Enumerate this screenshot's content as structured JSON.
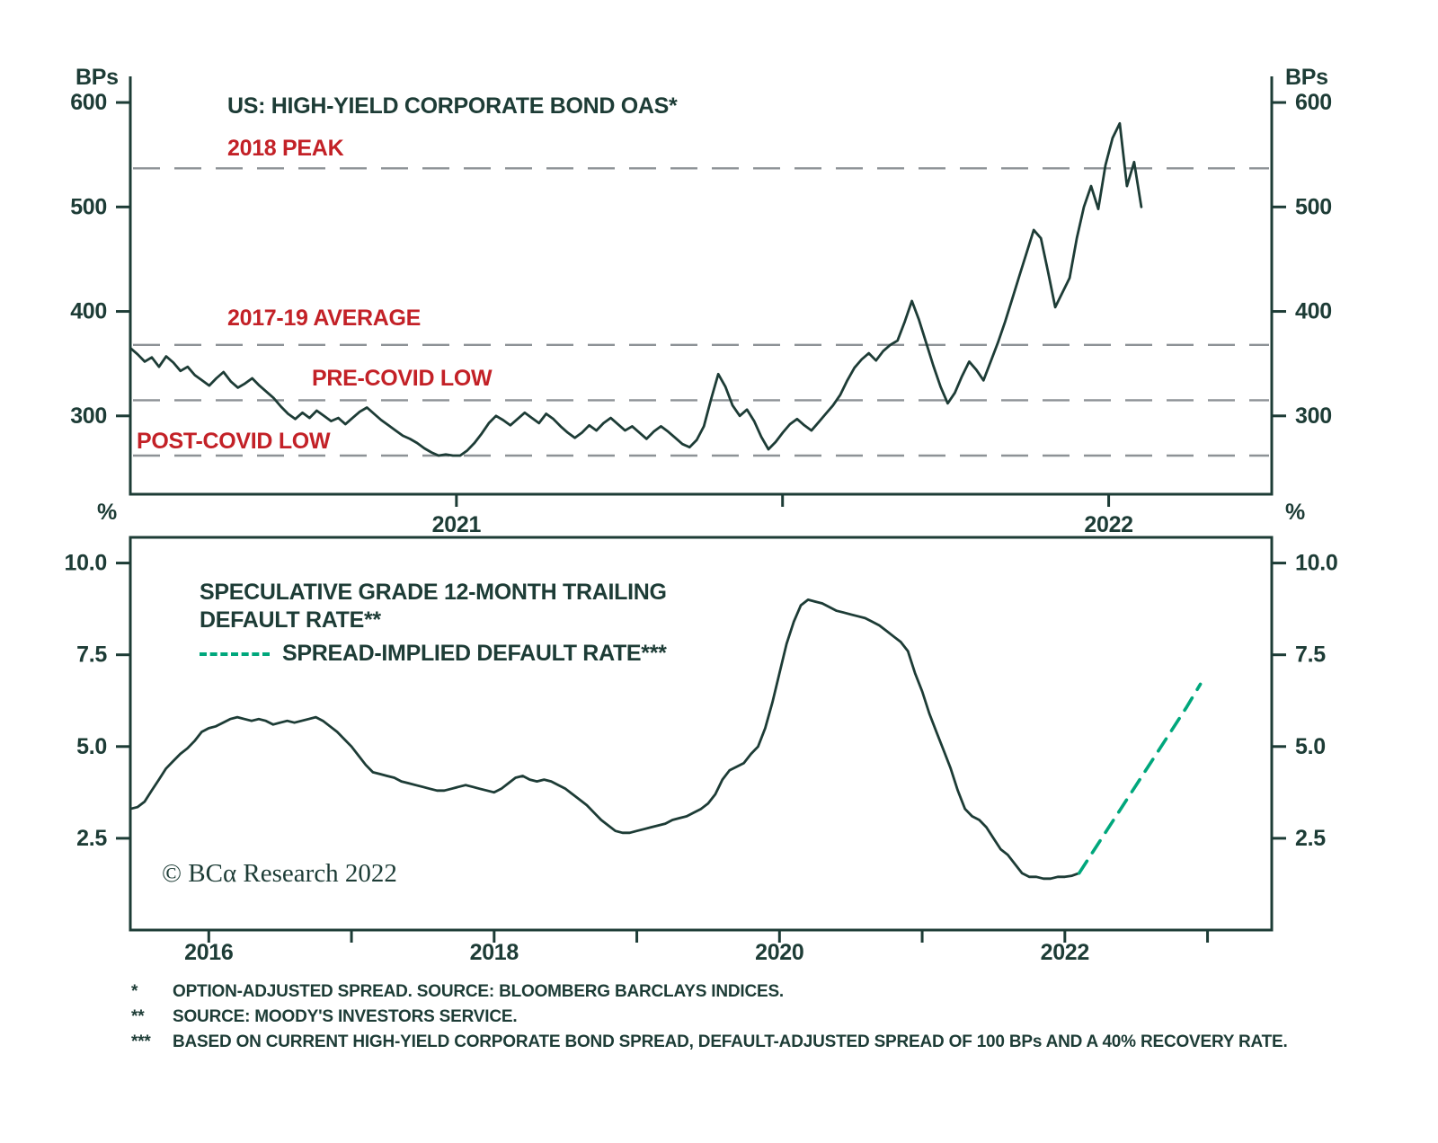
{
  "meta": {
    "copyright": "© BCα Research 2022"
  },
  "colors": {
    "ink": "#1d3c36",
    "red": "#c32127",
    "green": "#00a77c",
    "ref_grey": "#8d9296",
    "background": "#ffffff"
  },
  "footnotes": [
    {
      "marker": "*",
      "text": "OPTION-ADJUSTED SPREAD. SOURCE: BLOOMBERG BARCLAYS INDICES."
    },
    {
      "marker": "**",
      "text": "SOURCE: MOODY'S INVESTORS SERVICE."
    },
    {
      "marker": "***",
      "text": "BASED ON CURRENT HIGH-YIELD CORPORATE BOND SPREAD, DEFAULT-ADJUSTED SPREAD OF 100 BPs AND A 40% RECOVERY RATE."
    }
  ],
  "chart_data": [
    {
      "id": "hy-oas",
      "type": "line",
      "title": "US: HIGH-YIELD CORPORATE BOND OAS*",
      "unit": "BPs",
      "ylim": [
        225,
        625
      ],
      "yticks": [
        {
          "v": 600,
          "label": "600"
        },
        {
          "v": 500,
          "label": "500"
        },
        {
          "v": 400,
          "label": "400"
        },
        {
          "v": 300,
          "label": "300"
        }
      ],
      "x_range": [
        2020.5,
        2022.25
      ],
      "xticks": [
        {
          "v": 2021,
          "label": "2021"
        },
        {
          "v": 2021.5,
          "label": ""
        },
        {
          "v": 2022,
          "label": "2022"
        }
      ],
      "grid": false,
      "ref_lines": [
        {
          "value": 537,
          "label": "2018 PEAK"
        },
        {
          "value": 368,
          "label": "2017-19 AVERAGE"
        },
        {
          "value": 315,
          "label": "PRE-COVID LOW"
        },
        {
          "value": 262,
          "label": "POST-COVID LOW"
        }
      ],
      "series": [
        {
          "name": "US high-yield corporate bond OAS (BPs)",
          "style": "solid",
          "color_key": "ink",
          "x_start": 2020.5,
          "x_end": 2022.05,
          "values": [
            365,
            359,
            352,
            356,
            347,
            357,
            351,
            343,
            347,
            339,
            334,
            329,
            336,
            342,
            333,
            327,
            331,
            336,
            329,
            323,
            317,
            309,
            302,
            297,
            303,
            298,
            305,
            300,
            295,
            298,
            292,
            298,
            304,
            308,
            302,
            296,
            291,
            286,
            281,
            278,
            274,
            269,
            265,
            262,
            263,
            262,
            262,
            267,
            274,
            283,
            293,
            300,
            296,
            291,
            297,
            303,
            298,
            293,
            302,
            297,
            290,
            284,
            279,
            284,
            291,
            286,
            293,
            298,
            292,
            286,
            290,
            284,
            278,
            285,
            290,
            285,
            279,
            273,
            270,
            277,
            290,
            316,
            340,
            328,
            310,
            300,
            306,
            295,
            280,
            268,
            275,
            284,
            292,
            297,
            291,
            286,
            294,
            302,
            310,
            320,
            334,
            346,
            354,
            360,
            353,
            362,
            368,
            372,
            390,
            410,
            392,
            370,
            348,
            328,
            312,
            322,
            338,
            352,
            344,
            334,
            352,
            370,
            390,
            412,
            434,
            456,
            478,
            470,
            438,
            404,
            418,
            432,
            470,
            500,
            520,
            498,
            540,
            566,
            580,
            520,
            543,
            500
          ]
        }
      ]
    },
    {
      "id": "default-rates",
      "type": "line",
      "unit": "%",
      "ylim": [
        0,
        10.7
      ],
      "yticks": [
        {
          "v": 10,
          "label": "10.0"
        },
        {
          "v": 7.5,
          "label": "7.5"
        },
        {
          "v": 5,
          "label": "5.0"
        },
        {
          "v": 2.5,
          "label": "2.5"
        }
      ],
      "x_range": [
        2015.45,
        2023.45
      ],
      "xticks": [
        {
          "v": 2016,
          "label": "2016"
        },
        {
          "v": 2017,
          "label": ""
        },
        {
          "v": 2018,
          "label": "2018"
        },
        {
          "v": 2019,
          "label": ""
        },
        {
          "v": 2020,
          "label": "2020"
        },
        {
          "v": 2021,
          "label": ""
        },
        {
          "v": 2022,
          "label": "2022"
        },
        {
          "v": 2023,
          "label": ""
        }
      ],
      "grid": false,
      "legend": [
        {
          "label": "SPECULATIVE GRADE 12-MONTH TRAILING DEFAULT RATE**",
          "style": "solid",
          "color_key": "ink"
        },
        {
          "label": "SPREAD-IMPLIED DEFAULT RATE***",
          "style": "dashed",
          "color_key": "green"
        }
      ],
      "series": [
        {
          "name": "Speculative grade 12-month trailing default rate (%)",
          "style": "solid",
          "color_key": "ink",
          "x_start": 2015.45,
          "x_end": 2022.1,
          "values": [
            3.3,
            3.35,
            3.5,
            3.8,
            4.1,
            4.4,
            4.6,
            4.8,
            4.95,
            5.15,
            5.4,
            5.5,
            5.55,
            5.65,
            5.75,
            5.8,
            5.75,
            5.7,
            5.75,
            5.7,
            5.6,
            5.65,
            5.7,
            5.65,
            5.7,
            5.75,
            5.8,
            5.7,
            5.55,
            5.4,
            5.2,
            5.0,
            4.75,
            4.5,
            4.3,
            4.25,
            4.2,
            4.15,
            4.05,
            4.0,
            3.95,
            3.9,
            3.85,
            3.8,
            3.8,
            3.85,
            3.9,
            3.95,
            3.9,
            3.85,
            3.8,
            3.75,
            3.85,
            4.0,
            4.15,
            4.2,
            4.1,
            4.05,
            4.1,
            4.05,
            3.95,
            3.85,
            3.7,
            3.55,
            3.4,
            3.2,
            3.0,
            2.85,
            2.7,
            2.65,
            2.65,
            2.7,
            2.75,
            2.8,
            2.85,
            2.9,
            3.0,
            3.05,
            3.1,
            3.2,
            3.3,
            3.45,
            3.7,
            4.1,
            4.35,
            4.45,
            4.55,
            4.8,
            5.0,
            5.5,
            6.2,
            7.0,
            7.8,
            8.4,
            8.85,
            9.0,
            8.95,
            8.9,
            8.8,
            8.7,
            8.65,
            8.6,
            8.55,
            8.5,
            8.4,
            8.3,
            8.15,
            8.0,
            7.85,
            7.6,
            7.0,
            6.5,
            5.9,
            5.4,
            4.9,
            4.4,
            3.8,
            3.3,
            3.1,
            3.0,
            2.8,
            2.5,
            2.2,
            2.05,
            1.8,
            1.55,
            1.45,
            1.45,
            1.4,
            1.4,
            1.45,
            1.45,
            1.48,
            1.55
          ]
        },
        {
          "name": "Spread-implied default rate (%)",
          "style": "dashed",
          "color_key": "green",
          "points": [
            [
              2022.1,
              1.55
            ],
            [
              2022.3,
              2.75
            ],
            [
              2022.5,
              3.95
            ],
            [
              2022.7,
              5.15
            ],
            [
              2022.85,
              6.05
            ],
            [
              2022.95,
              6.7
            ]
          ]
        }
      ]
    }
  ]
}
